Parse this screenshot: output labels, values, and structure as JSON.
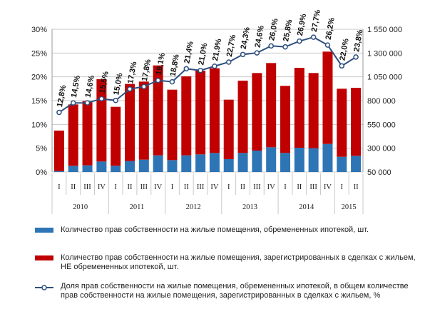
{
  "chart_data": {
    "type": "bar",
    "stacked": true,
    "categories": [
      "I",
      "II",
      "III",
      "IV",
      "I",
      "II",
      "III",
      "IV",
      "I",
      "II",
      "III",
      "IV",
      "I",
      "II",
      "III",
      "IV",
      "I",
      "II",
      "III",
      "IV",
      "I",
      "II"
    ],
    "years": [
      {
        "label": "2010",
        "count": 4
      },
      {
        "label": "2011",
        "count": 4
      },
      {
        "label": "2012",
        "count": 4
      },
      {
        "label": "2013",
        "count": 4
      },
      {
        "label": "2014",
        "count": 4
      },
      {
        "label": "2015",
        "count": 2
      }
    ],
    "series": [
      {
        "name": "Количество прав собственности на жилые помещения, обремененных ипотекой, шт.",
        "color": "#2e75b6",
        "axis": "left",
        "values": [
          0.2,
          1.3,
          1.4,
          2.2,
          1.3,
          2.3,
          2.6,
          3.5,
          2.5,
          3.5,
          3.7,
          4.0,
          2.7,
          4.0,
          4.5,
          5.2,
          4.0,
          5.1,
          5.0,
          5.9,
          3.2,
          3.4
        ]
      },
      {
        "name": "Количество прав собственности на жилые помещения, зарегистрированных в сделках с жильем, НЕ обремененных ипотекой, шт.",
        "color": "#c00000",
        "axis": "left",
        "values": [
          8.5,
          12.9,
          13.5,
          17.3,
          12.4,
          16.2,
          16.4,
          18.9,
          14.8,
          16.6,
          17.6,
          17.8,
          12.5,
          15.2,
          16.3,
          17.7,
          14.1,
          16.8,
          15.8,
          19.4,
          14.3,
          14.3
        ]
      }
    ],
    "line": {
      "name": "Доля прав собственности на жилые помещения, обремененных ипотекой, в общем количестве прав собственности на жилые помещения, зарегистрированных в сделках с жильем, %",
      "color": "#2f4f7f",
      "axis": "right",
      "values": [
        676000,
        776000,
        777000,
        820000,
        802000,
        922000,
        947000,
        1013000,
        998000,
        1135000,
        1117000,
        1162000,
        1205000,
        1285000,
        1302000,
        1375000,
        1365000,
        1425000,
        1467000,
        1384000,
        1165000,
        1258000
      ],
      "labels": [
        "12,8%",
        "14,5%",
        "14,6%",
        "15,5%",
        "15,0%",
        "17,3%",
        "17,8%",
        "19,1%",
        "18,8%",
        "21,4%",
        "21,0%",
        "21,9%",
        "22,7%",
        "24,3%",
        "24,6%",
        "26,0%",
        "25,8%",
        "26,9%",
        "27,7%",
        "26,2%",
        "22,0%",
        "23,8%"
      ]
    },
    "y_left": {
      "min": 0,
      "max": 30,
      "step": 5,
      "ticks": [
        "0%",
        "5%",
        "10%",
        "15%",
        "20%",
        "25%",
        "30%"
      ]
    },
    "y_right": {
      "min": 50000,
      "max": 1550000,
      "step": 250000,
      "ticks": [
        "50 000",
        "300 000",
        "550 000",
        "800 000",
        "1 050 000",
        "1 300 000",
        "1 550 000"
      ]
    },
    "grid": true
  },
  "legend": [
    {
      "label": "Количество прав собственности на жилые помещения, обремененных ипотекой, шт.",
      "type": "bar",
      "color": "#2e75b6"
    },
    {
      "label": "Количество прав собственности на жилые помещения, зарегистрированных в сделках с жильем, НЕ обремененных ипотекой, шт.",
      "type": "bar",
      "color": "#c00000"
    },
    {
      "label": "Доля прав собственности на жилые помещения, обремененных ипотекой, в общем количестве прав собственности на жилые помещения, зарегистрированных в сделках с жильем, %",
      "type": "line",
      "color": "#2f4f7f"
    }
  ]
}
